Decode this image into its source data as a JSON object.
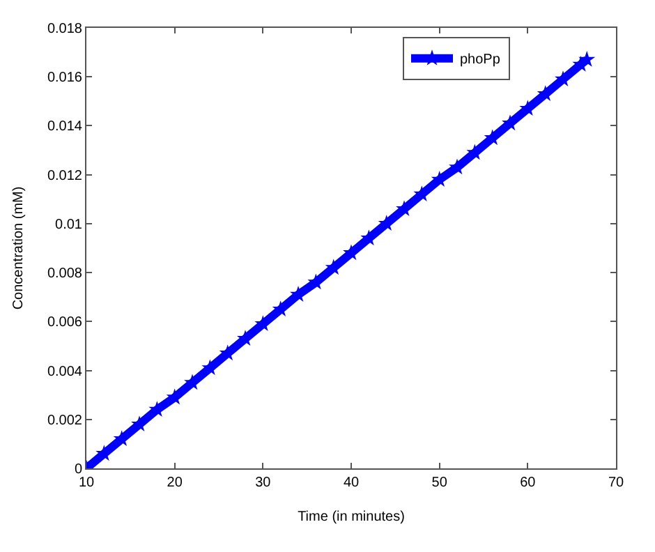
{
  "chart_data": {
    "type": "line",
    "xlabel": "Time (in minutes)",
    "ylabel": "Concentration (mM)",
    "x": [
      10,
      12,
      14,
      16,
      18,
      20,
      22,
      24,
      26,
      28,
      30,
      32,
      34,
      36,
      38,
      40,
      42,
      44,
      46,
      48,
      50,
      52,
      54,
      56,
      58,
      60,
      62,
      64,
      66,
      66.7
    ],
    "series": [
      {
        "name": "phoPp",
        "color": "#0000ff",
        "values": [
          0,
          0.0006,
          0.0012,
          0.0018,
          0.0024,
          0.0029,
          0.0035,
          0.0041,
          0.0047,
          0.0053,
          0.0059,
          0.0065,
          0.0071,
          0.0076,
          0.0082,
          0.0088,
          0.0094,
          0.01,
          0.0106,
          0.0112,
          0.0118,
          0.0123,
          0.0129,
          0.0135,
          0.0141,
          0.0147,
          0.0153,
          0.0159,
          0.0165,
          0.0167
        ]
      }
    ],
    "xlim": [
      10,
      70
    ],
    "xticks": [
      10,
      20,
      30,
      40,
      50,
      60,
      70
    ],
    "ylim": [
      0,
      0.018
    ],
    "yticks": [
      0,
      0.002,
      0.004,
      0.006,
      0.008,
      0.01,
      0.012,
      0.014,
      0.016,
      0.018
    ],
    "legend": "top right",
    "marker": "star",
    "line_style": "solid"
  }
}
